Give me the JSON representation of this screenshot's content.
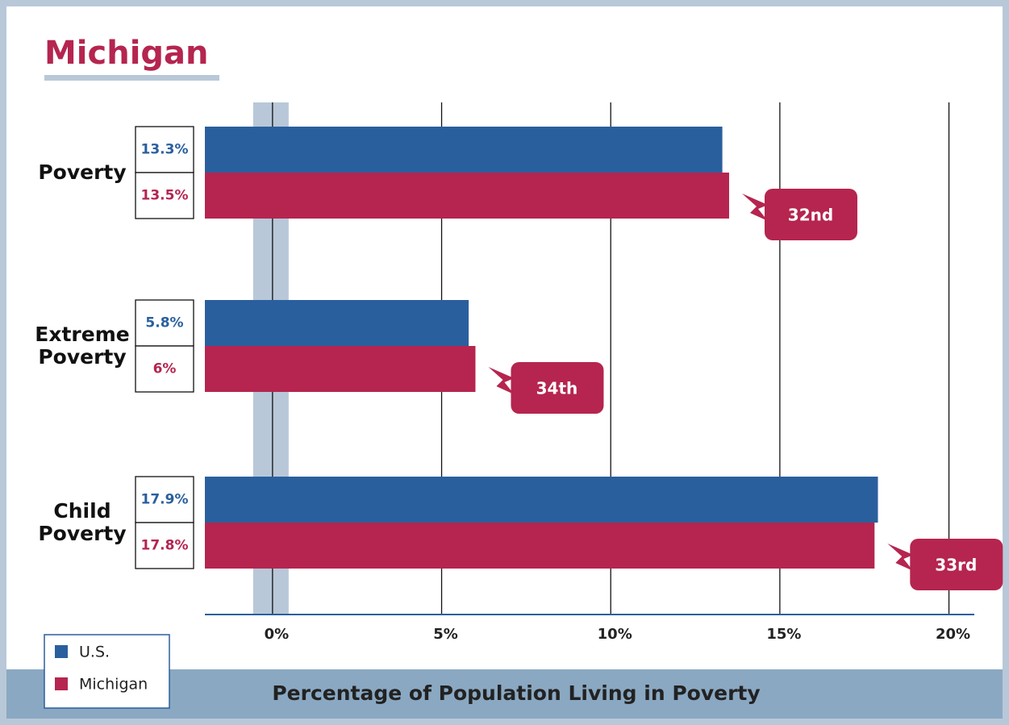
{
  "chart_data": {
    "type": "hbar",
    "title": "Michigan",
    "x_label": "Percentage of Population Living in Poverty",
    "categories": [
      "Poverty",
      "Extreme Poverty",
      "Child Poverty"
    ],
    "series": [
      {
        "name": "U.S.",
        "color": "#2a5f9e",
        "values": [
          13.3,
          5.8,
          17.9
        ],
        "value_labels": [
          "13.3%",
          "5.8%",
          "17.9%"
        ]
      },
      {
        "name": "Michigan",
        "color": "#b5254f",
        "values": [
          13.5,
          6,
          17.8
        ],
        "value_labels": [
          "13.5%",
          "6%",
          "17.8%"
        ]
      }
    ],
    "ranks": [
      "32nd",
      "34th",
      "33rd"
    ],
    "xlim": [
      -2,
      20.75
    ],
    "xticks": [
      {
        "value": 0,
        "label": "0%"
      },
      {
        "value": 5,
        "label": "5%"
      },
      {
        "value": 10,
        "label": "10%"
      },
      {
        "value": 15,
        "label": "15%"
      },
      {
        "value": 20,
        "label": "20%"
      }
    ],
    "grid": true
  }
}
